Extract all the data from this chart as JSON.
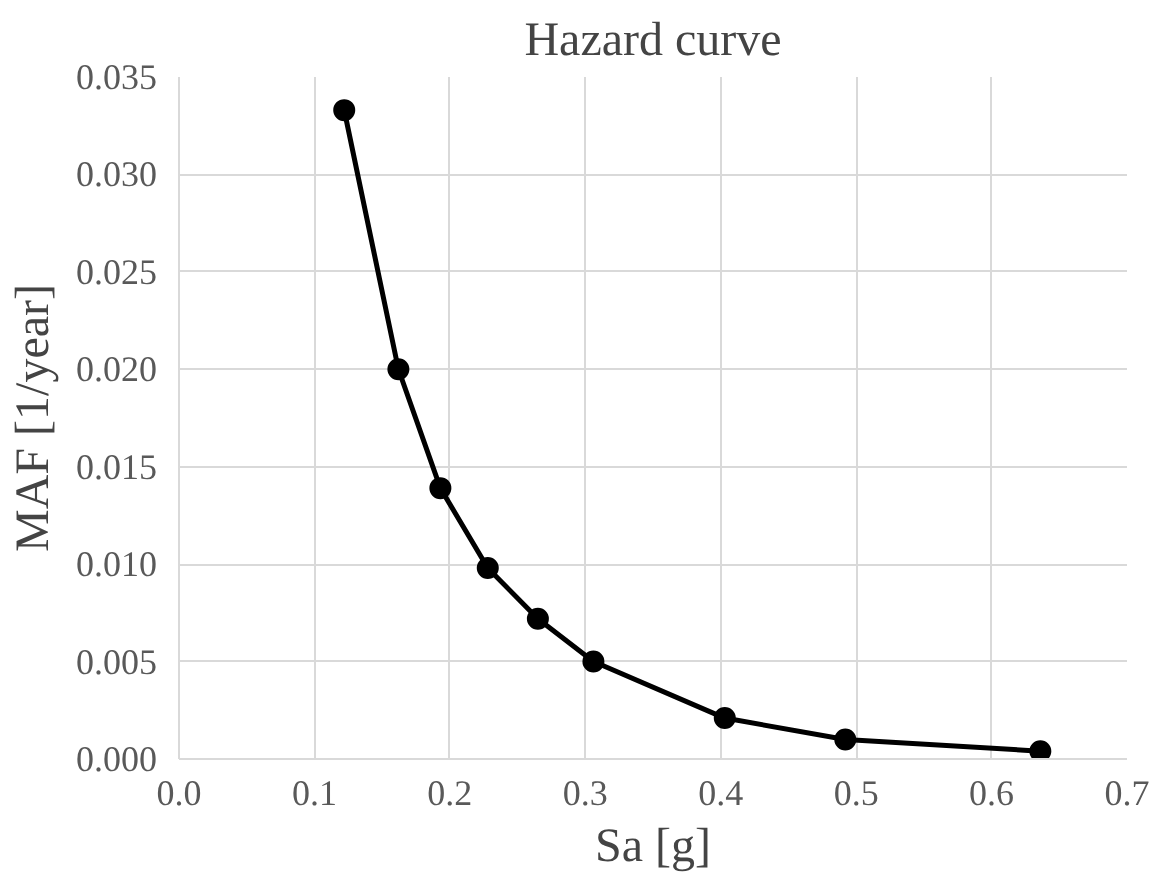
{
  "chart_data": {
    "type": "line",
    "title": "Hazard curve",
    "xlabel": "Sa [g]",
    "ylabel": "MAF [1/year]",
    "x": [
      0.122,
      0.162,
      0.193,
      0.228,
      0.265,
      0.306,
      0.403,
      0.492,
      0.636
    ],
    "series": [
      {
        "color": "#000000",
        "values": [
          0.0333,
          0.02,
          0.0139,
          0.0098,
          0.0072,
          0.005,
          0.0021,
          0.001,
          0.0004
        ]
      }
    ],
    "xlim": [
      0,
      0.7
    ],
    "xticks": [
      {
        "value": 0,
        "label": "0.0"
      },
      0.1,
      0.2,
      0.3,
      0.4,
      0.5,
      0.6,
      0.7
    ],
    "ylim": [
      0,
      0.035
    ],
    "yticks": [
      {
        "value": 0,
        "label": "0.000"
      },
      0.005,
      {
        "value": 0.01,
        "label": "0.010"
      },
      0.015,
      {
        "value": 0.02,
        "label": "0.020"
      },
      0.025,
      {
        "value": 0.03,
        "label": "0.030"
      },
      0.035
    ],
    "grid": true,
    "marker": "circle",
    "line_style": "solid"
  }
}
